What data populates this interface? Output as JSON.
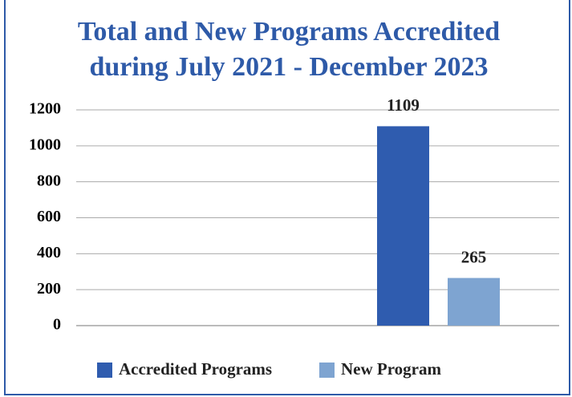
{
  "chart_data": {
    "type": "bar",
    "title": [
      "Total and New Programs Accredited",
      "during July 2021 - December 2023"
    ],
    "categories": [
      null,
      null
    ],
    "series": [
      {
        "name": "Accredited Programs",
        "color": "#2f5caf",
        "values": [
          null,
          1109
        ]
      },
      {
        "name": "New Program",
        "color": "#7ea4d1",
        "values": [
          null,
          265
        ]
      }
    ],
    "ylim": [
      0,
      1200
    ],
    "yticks": [
      0,
      200,
      400,
      600,
      800,
      1000,
      1200
    ],
    "grid": true,
    "legend": "bottom"
  }
}
